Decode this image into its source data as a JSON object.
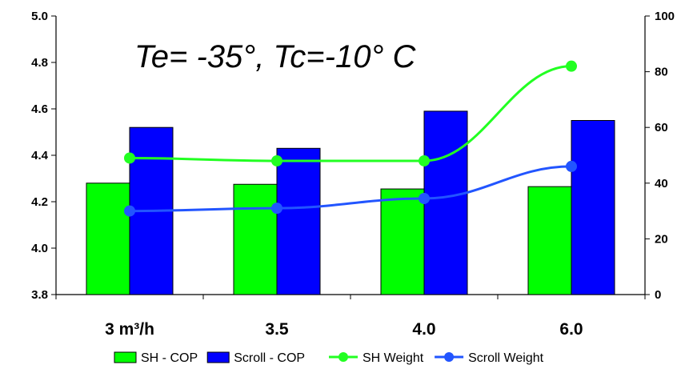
{
  "chart_data": {
    "type": "bar",
    "title": "Te= -35°, Tc=-10° C",
    "categories": [
      "3 m³/h",
      "3.5",
      "4.0",
      "6.0"
    ],
    "y_left": {
      "ylim": [
        3.8,
        5.0
      ],
      "ticks": [
        "3.8",
        "4.0",
        "4.2",
        "4.4",
        "4.6",
        "4.8",
        "5.0"
      ]
    },
    "y_right": {
      "ylim": [
        0,
        100
      ],
      "ticks": [
        "0",
        "20",
        "40",
        "60",
        "80",
        "100"
      ]
    },
    "bar_series": [
      {
        "name": "SH - COP",
        "color": "#00ff00",
        "values": [
          4.28,
          4.275,
          4.255,
          4.265
        ]
      },
      {
        "name": "Scroll - COP",
        "color": "#0000ff",
        "values": [
          4.52,
          4.43,
          4.59,
          4.55
        ]
      }
    ],
    "line_series": [
      {
        "name": "SH Weight",
        "color": "#22ff22",
        "axis": "right",
        "values": [
          49,
          48,
          48,
          82
        ]
      },
      {
        "name": "Scroll Weight",
        "color": "#2255ff",
        "axis": "right",
        "values": [
          30,
          31,
          34.5,
          46
        ]
      }
    ],
    "legend": "bottom",
    "grid": false
  }
}
